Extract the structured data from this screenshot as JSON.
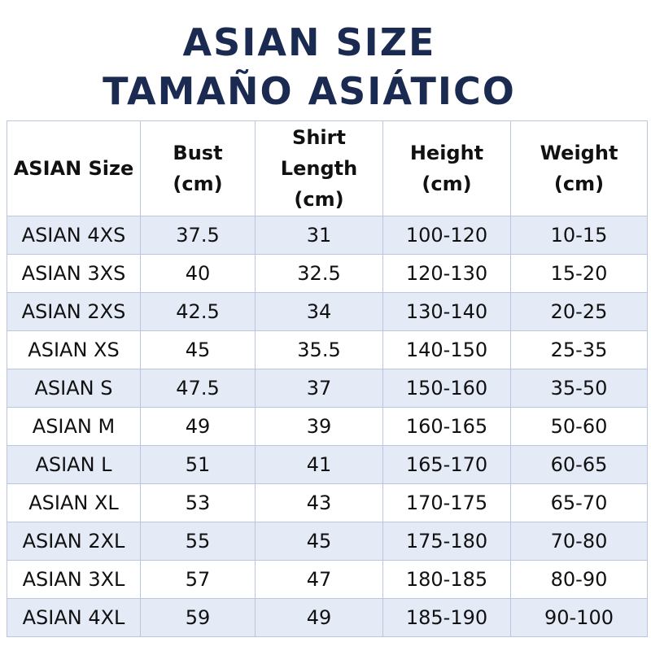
{
  "header": {
    "title_lines": [
      "ASIAN SIZE",
      "TAMAÑO ASIÁTICO"
    ]
  },
  "table": {
    "columns": [
      [
        "ASIAN Size"
      ],
      [
        "Bust",
        "(cm)"
      ],
      [
        "Shirt",
        "Length",
        "(cm)"
      ],
      [
        "Height",
        "(cm)"
      ],
      [
        "Weight",
        "(cm)"
      ]
    ],
    "rows": [
      [
        "ASIAN 4XS",
        "37.5",
        "31",
        "100-120",
        "10-15"
      ],
      [
        "ASIAN 3XS",
        "40",
        "32.5",
        "120-130",
        "15-20"
      ],
      [
        "ASIAN 2XS",
        "42.5",
        "34",
        "130-140",
        "20-25"
      ],
      [
        "ASIAN XS",
        "45",
        "35.5",
        "140-150",
        "25-35"
      ],
      [
        "ASIAN S",
        "47.5",
        "37",
        "150-160",
        "35-50"
      ],
      [
        "ASIAN M",
        "49",
        "39",
        "160-165",
        "50-60"
      ],
      [
        "ASIAN L",
        "51",
        "41",
        "165-170",
        "60-65"
      ],
      [
        "ASIAN XL",
        "53",
        "43",
        "170-175",
        "65-70"
      ],
      [
        "ASIAN 2XL",
        "55",
        "45",
        "175-180",
        "70-80"
      ],
      [
        "ASIAN 3XL",
        "57",
        "47",
        "180-185",
        "80-90"
      ],
      [
        "ASIAN 4XL",
        "59",
        "49",
        "185-190",
        "90-100"
      ]
    ]
  }
}
